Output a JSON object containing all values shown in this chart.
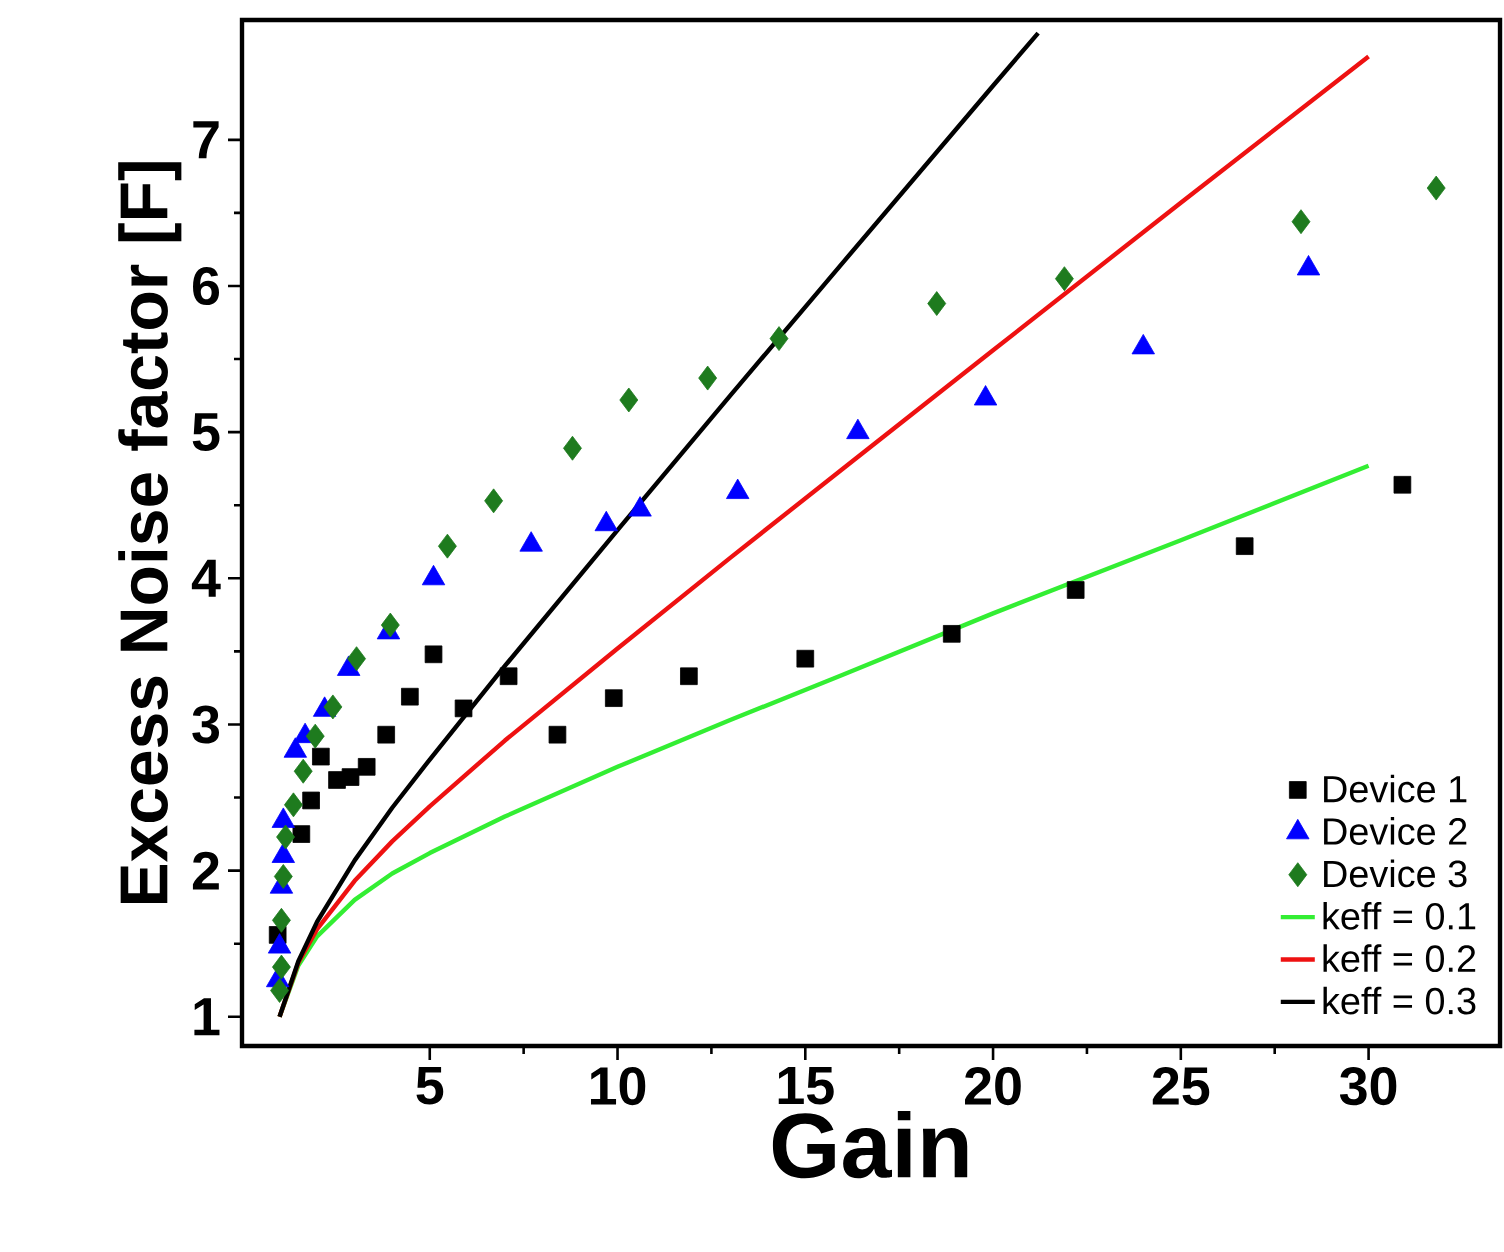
{
  "chart_data": {
    "type": "scatter",
    "xlabel": "Gain",
    "ylabel": "Excess Noise factor [F]",
    "xlim": [
      0,
      33.5
    ],
    "ylim": [
      0.8,
      7.82
    ],
    "xticks": [
      5,
      10,
      15,
      20,
      25,
      30
    ],
    "yticks": [
      1,
      2,
      3,
      4,
      5,
      6,
      7
    ],
    "grid": false,
    "legend": "bottom right",
    "series": [
      {
        "name": "Device 1",
        "marker": "square",
        "color": "#000000",
        "x": [
          0.95,
          1.58,
          1.84,
          2.1,
          2.53,
          2.89,
          3.32,
          3.84,
          4.47,
          5.1,
          5.9,
          7.1,
          8.4,
          9.9,
          11.9,
          15.0,
          18.9,
          22.2,
          26.7,
          30.9
        ],
        "values": [
          1.56,
          2.25,
          2.48,
          2.78,
          2.62,
          2.64,
          2.71,
          2.93,
          3.19,
          3.48,
          3.11,
          3.33,
          2.93,
          3.18,
          3.33,
          3.45,
          3.62,
          3.92,
          4.22,
          4.64
        ]
      },
      {
        "name": "Device 2",
        "marker": "triangle",
        "color": "#0000ff",
        "x": [
          0.95,
          1.0,
          1.05,
          1.1,
          1.1,
          1.42,
          1.68,
          2.2,
          2.84,
          3.9,
          5.1,
          7.7,
          9.7,
          10.6,
          13.2,
          16.4,
          19.8,
          24.0,
          28.4
        ],
        "values": [
          1.25,
          1.48,
          1.89,
          2.1,
          2.34,
          2.82,
          2.92,
          3.1,
          3.38,
          3.63,
          4.0,
          4.23,
          4.37,
          4.47,
          4.59,
          5.0,
          5.23,
          5.58,
          6.12
        ]
      },
      {
        "name": "Device 3",
        "marker": "diamond",
        "color": "#1e7b1e",
        "x": [
          1.0,
          1.05,
          1.05,
          1.1,
          1.16,
          1.37,
          1.63,
          1.95,
          2.42,
          3.05,
          3.95,
          5.47,
          6.7,
          8.8,
          10.3,
          12.4,
          14.3,
          18.5,
          21.9,
          28.2,
          31.8
        ],
        "values": [
          1.18,
          1.34,
          1.66,
          1.96,
          2.23,
          2.45,
          2.68,
          2.92,
          3.12,
          3.45,
          3.68,
          4.22,
          4.53,
          4.89,
          5.22,
          5.37,
          5.64,
          5.88,
          6.05,
          6.44,
          6.67
        ]
      },
      {
        "name": "keff = 0.1",
        "type": "line",
        "marker": "none",
        "line_style": "solid",
        "color": "#33ee33",
        "x": [
          1,
          1.5,
          2,
          3,
          4,
          5,
          7,
          10,
          13,
          16,
          20,
          25,
          30
        ],
        "values": [
          1.0,
          1.35,
          1.55,
          1.8,
          1.98,
          2.12,
          2.37,
          2.71,
          3.03,
          3.34,
          3.76,
          4.26,
          4.77
        ]
      },
      {
        "name": "keff = 0.2",
        "type": "line",
        "marker": "none",
        "line_style": "solid",
        "color": "#ee1111",
        "x": [
          1,
          1.5,
          2,
          3,
          4,
          5,
          7,
          10,
          13,
          16,
          20,
          25,
          30
        ],
        "values": [
          1.0,
          1.37,
          1.6,
          1.93,
          2.2,
          2.44,
          2.89,
          3.52,
          4.14,
          4.75,
          5.56,
          6.57,
          7.57
        ]
      },
      {
        "name": "keff = 0.3",
        "type": "line",
        "marker": "none",
        "line_style": "solid",
        "color": "#000000",
        "x": [
          1,
          1.5,
          2,
          3,
          4,
          5,
          7,
          10,
          13,
          16,
          20,
          21.2
        ],
        "values": [
          1.0,
          1.38,
          1.65,
          2.07,
          2.43,
          2.76,
          3.4,
          4.33,
          5.25,
          6.16,
          7.37,
          7.73
        ]
      }
    ]
  }
}
